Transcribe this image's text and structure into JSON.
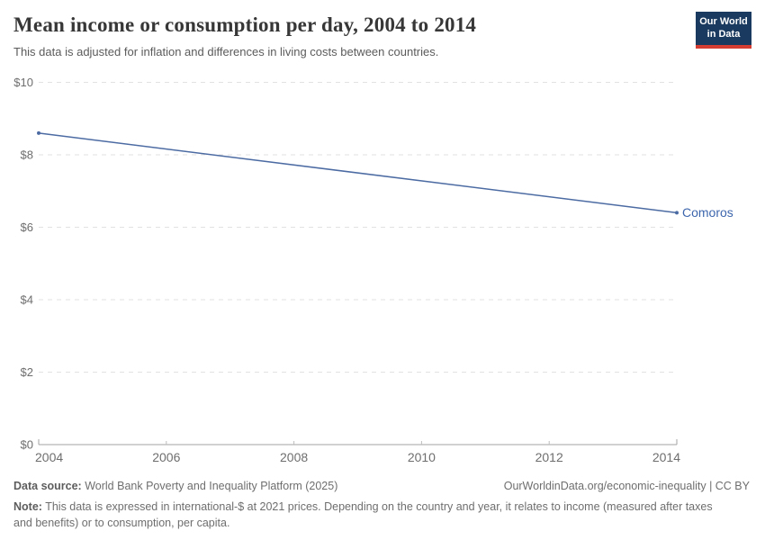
{
  "header": {
    "title": "Mean income or consumption per day, 2004 to 2014",
    "subtitle": "This data is adjusted for inflation and differences in living costs between countries.",
    "logo": {
      "line1": "Our World",
      "line2": "in Data",
      "bg_color": "#1b3a5f",
      "bar_color": "#d53d32"
    }
  },
  "chart_data": {
    "type": "line",
    "title": "Mean income or consumption per day, 2004 to 2014",
    "xlabel": "",
    "ylabel": "",
    "x": [
      2004,
      2014
    ],
    "series": [
      {
        "name": "Comoros",
        "values": [
          8.6,
          6.4
        ],
        "color": "#4c6ba3",
        "label_color": "#3d66ad"
      }
    ],
    "xlim": [
      2004,
      2014
    ],
    "ylim": [
      0,
      10
    ],
    "x_ticks": [
      2004,
      2006,
      2008,
      2010,
      2012,
      2014
    ],
    "x_tick_labels": [
      "2004",
      "2006",
      "2008",
      "2010",
      "2012",
      "2014"
    ],
    "y_ticks": [
      0,
      2,
      4,
      6,
      8,
      10
    ],
    "y_tick_labels": [
      "$0",
      "$2",
      "$4",
      "$6",
      "$8",
      "$10"
    ],
    "grid": "horizontal-dashed",
    "grid_color": "#e2e2e2",
    "axis_color": "#a3a3a3",
    "tick_label_color": "#6e6e6e",
    "legend_position": "end-of-line-label"
  },
  "footer": {
    "data_source_label": "Data source:",
    "data_source_text": "World Bank Poverty and Inequality Platform (2025)",
    "link_text": "OurWorldinData.org/economic-inequality | CC BY",
    "note_label": "Note:",
    "note_text": "This data is expressed in international-$ at 2021 prices. Depending on the country and year, it relates to income (measured after taxes and benefits) or to consumption, per capita."
  }
}
